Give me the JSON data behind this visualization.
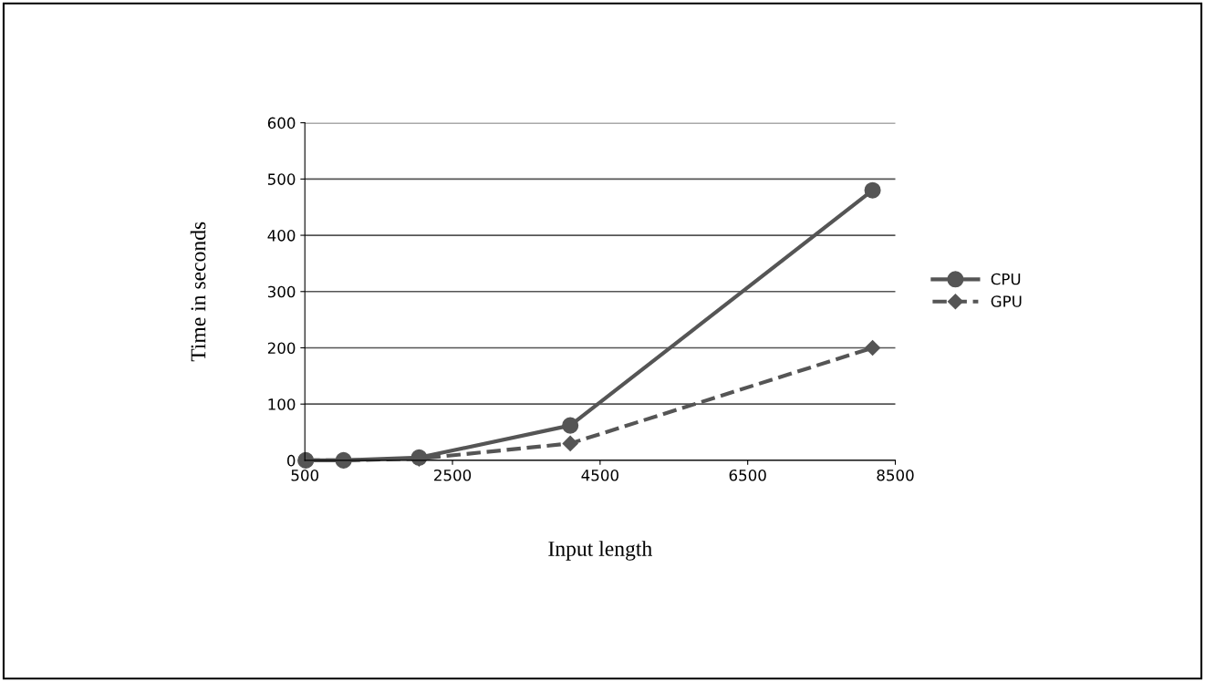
{
  "chart_data": {
    "type": "line",
    "xlabel": "Input length",
    "ylabel": "Time in seconds",
    "x": [
      512,
      1024,
      2048,
      4096,
      8192
    ],
    "series": [
      {
        "name": "CPU",
        "color": "#555555",
        "values": [
          0,
          0,
          5,
          62,
          480
        ],
        "marker": "circle",
        "line_style": "solid"
      },
      {
        "name": "GPU",
        "color": "#555555",
        "values": [
          0,
          0,
          3,
          30,
          200
        ],
        "marker": "diamond",
        "line_style": "dashed"
      }
    ],
    "xlim": [
      500,
      8500
    ],
    "xticks": [
      500,
      2500,
      4500,
      6500,
      8500
    ],
    "ylim": [
      0,
      600
    ],
    "yticks": [
      0,
      100,
      200,
      300,
      400,
      500,
      600
    ],
    "grid": "y",
    "legend": "right"
  }
}
